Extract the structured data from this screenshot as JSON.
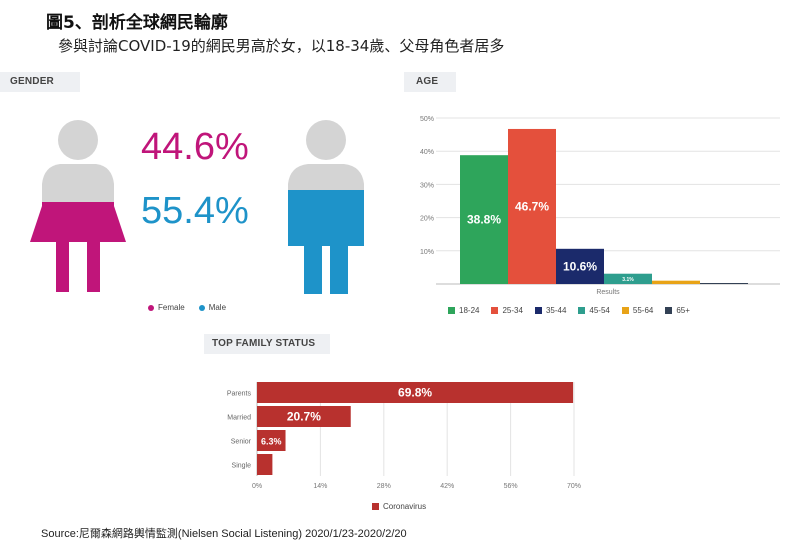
{
  "title": "圖5、剖析全球網民輪廓",
  "subtitle": "參與討論COVID-19的網民男高於女，以18-34歲、父母角色者居多",
  "source": "Source:尼爾森網路輿情監測(Nielsen   Social Listening)  2020/1/23-2020/2/20",
  "colors": {
    "female": "#c0157a",
    "male": "#1e93c9",
    "figure_gray": "#d4d4d4",
    "family_bar": "#b8312e"
  },
  "chart_data": [
    {
      "type": "pie",
      "panel_label": "GENDER",
      "categories": [
        "Female",
        "Male"
      ],
      "values": [
        44.6,
        55.4
      ],
      "value_labels": [
        "44.6%",
        "55.4%"
      ],
      "legend": "bottom"
    },
    {
      "type": "bar",
      "panel_label": "AGE",
      "categories": [
        "18-24",
        "25-34",
        "35-44",
        "45-54",
        "55-64",
        "65+"
      ],
      "values": [
        38.8,
        46.7,
        10.6,
        3.1,
        1.0,
        0.3
      ],
      "value_labels": [
        "38.8%",
        "46.7%",
        "10.6%",
        "3.1%",
        "",
        ""
      ],
      "colors": [
        "#2ea55b",
        "#e4503c",
        "#1b2a6b",
        "#2e9e8e",
        "#e8a317",
        "#334155"
      ],
      "y_ticks": [
        "10%",
        "20%",
        "30%",
        "40%",
        "50%"
      ],
      "ylim": [
        0,
        50
      ],
      "xlabel": "Results",
      "legend": "bottom"
    },
    {
      "type": "bar",
      "orientation": "horizontal",
      "panel_label": "TOP FAMILY STATUS",
      "categories": [
        "Parents",
        "Married",
        "Senior",
        "Single"
      ],
      "values": [
        69.8,
        20.7,
        6.3,
        3.4
      ],
      "value_labels": [
        "69.8%",
        "20.7%",
        "6.3%",
        ""
      ],
      "x_ticks": [
        "0%",
        "14%",
        "28%",
        "42%",
        "56%",
        "70%"
      ],
      "xlim": [
        0,
        70
      ],
      "series_name": "Coronavirus",
      "legend": "bottom"
    }
  ]
}
